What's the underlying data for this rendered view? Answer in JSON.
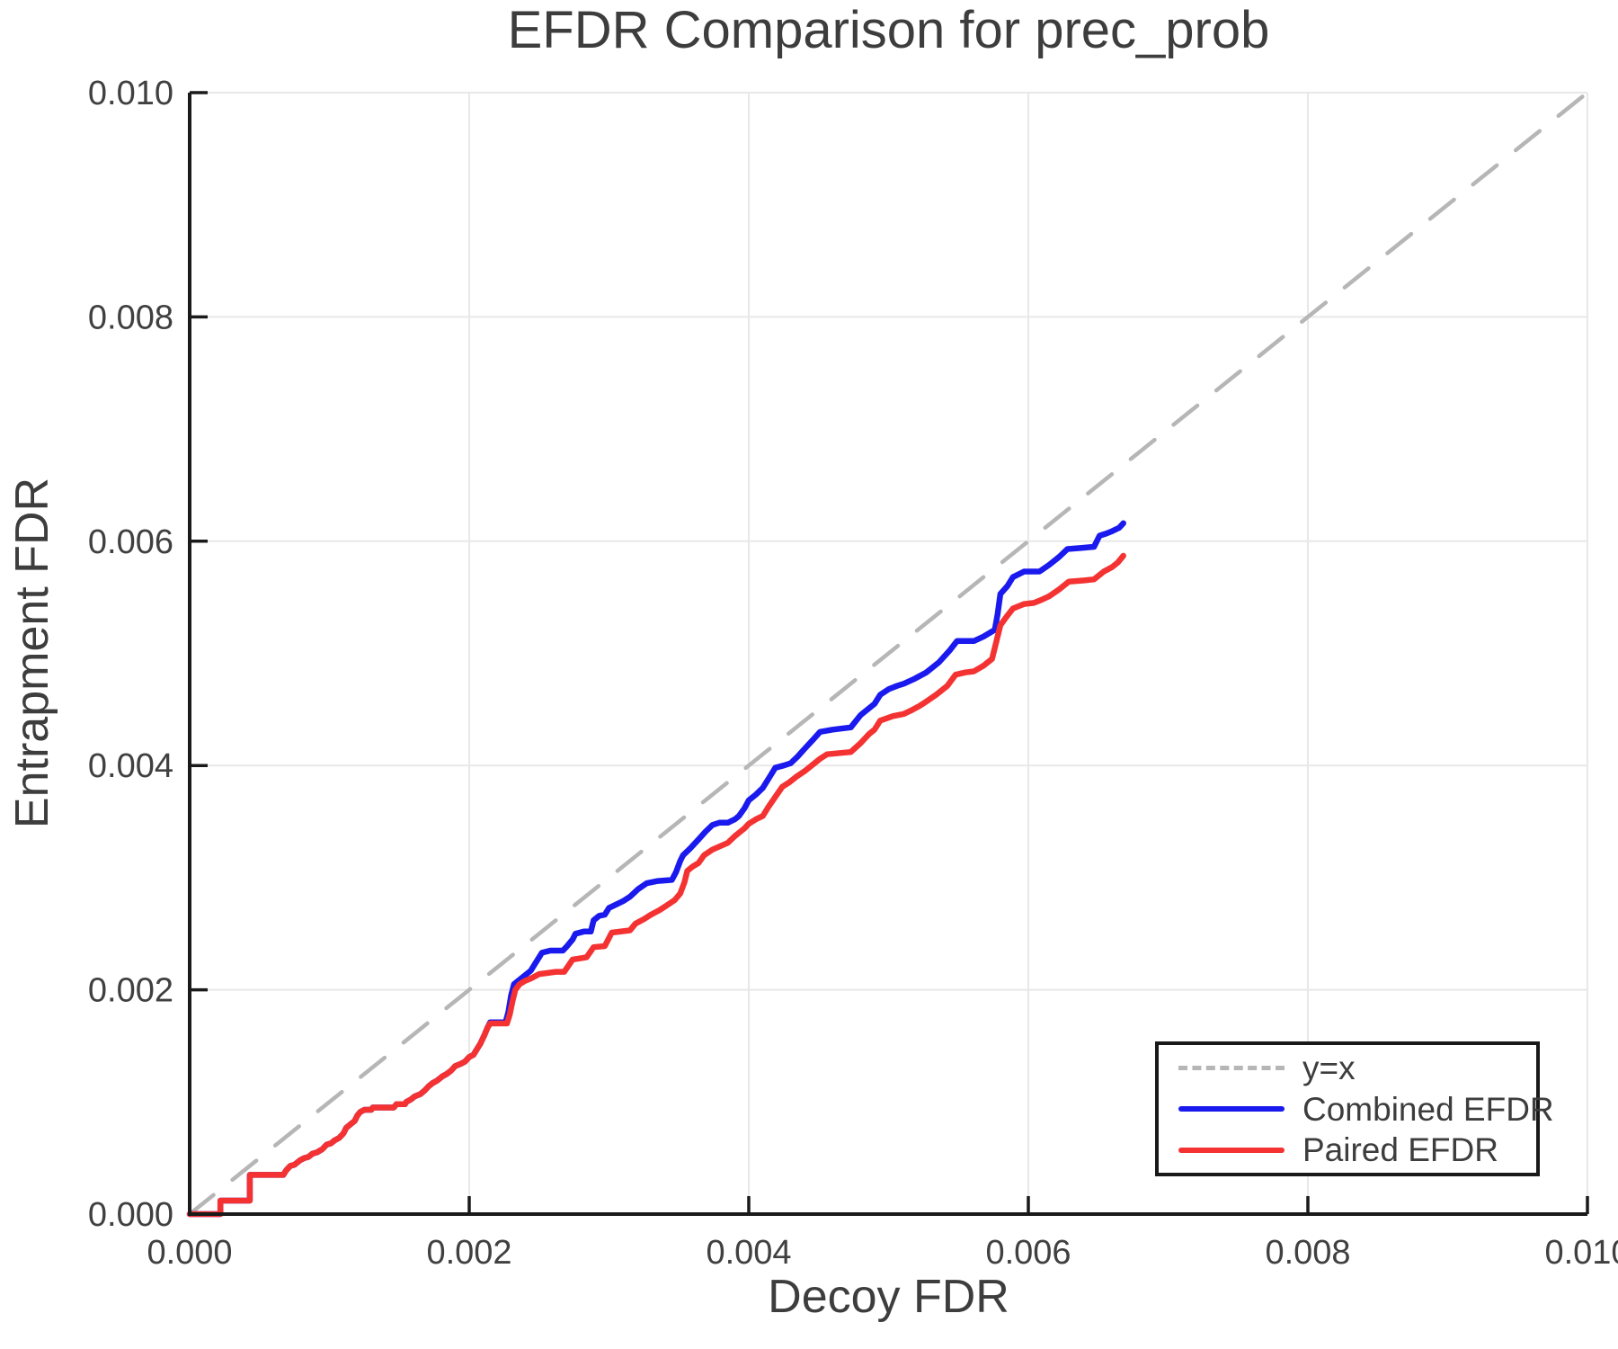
{
  "chart_data": {
    "type": "line",
    "title": "EFDR Comparison for prec_prob",
    "xlabel": "Decoy FDR",
    "ylabel": "Entrapment FDR",
    "xlim": [
      0.0,
      0.01
    ],
    "ylim": [
      0.0,
      0.01
    ],
    "xticks": [
      0.0,
      0.002,
      0.004,
      0.006,
      0.008,
      0.01
    ],
    "yticks": [
      0.0,
      0.002,
      0.004,
      0.006,
      0.008,
      0.01
    ],
    "xtick_labels": [
      "0.000",
      "0.002",
      "0.004",
      "0.006",
      "0.008",
      "0.010"
    ],
    "ytick_labels": [
      "0.000",
      "0.002",
      "0.004",
      "0.006",
      "0.008",
      "0.010"
    ],
    "grid": true,
    "grid_color": "#e8e8e8",
    "spine_color": "#1a1a1a",
    "text_color": "#3d3d3d",
    "legend_position": "lower right",
    "series": [
      {
        "name": "y=x",
        "style": "dashed",
        "color": "#b6b6b6",
        "width": 4.5,
        "points": [
          [
            0.0,
            0.0
          ],
          [
            0.01,
            0.01
          ]
        ]
      },
      {
        "name": "Combined EFDR",
        "style": "solid",
        "color": "#1a1aee",
        "width": 6.5,
        "points": [
          [
            0.0,
            0.0
          ],
          [
            0.00022,
            0.0
          ],
          [
            0.00022,
            0.00012
          ],
          [
            0.00043,
            0.00012
          ],
          [
            0.00043,
            0.00035
          ],
          [
            0.00067,
            0.00035
          ],
          [
            0.00069,
            0.00039
          ],
          [
            0.00072,
            0.00043
          ],
          [
            0.00075,
            0.00044
          ],
          [
            0.00079,
            0.00048
          ],
          [
            0.00082,
            0.0005
          ],
          [
            0.00085,
            0.00051
          ],
          [
            0.00088,
            0.00054
          ],
          [
            0.00091,
            0.00055
          ],
          [
            0.00095,
            0.00058
          ],
          [
            0.00098,
            0.00062
          ],
          [
            0.00101,
            0.00063
          ],
          [
            0.00104,
            0.00066
          ],
          [
            0.00107,
            0.00068
          ],
          [
            0.0011,
            0.00072
          ],
          [
            0.00112,
            0.00077
          ],
          [
            0.00115,
            0.0008
          ],
          [
            0.00118,
            0.00083
          ],
          [
            0.0012,
            0.00088
          ],
          [
            0.00122,
            0.00091
          ],
          [
            0.00125,
            0.00093
          ],
          [
            0.0013,
            0.00093
          ],
          [
            0.00131,
            0.00095
          ],
          [
            0.00146,
            0.00095
          ],
          [
            0.00148,
            0.00098
          ],
          [
            0.00154,
            0.00098
          ],
          [
            0.00155,
            0.001
          ],
          [
            0.00158,
            0.00102
          ],
          [
            0.00161,
            0.00105
          ],
          [
            0.00165,
            0.00107
          ],
          [
            0.00168,
            0.0011
          ],
          [
            0.00171,
            0.00114
          ],
          [
            0.00174,
            0.00117
          ],
          [
            0.00177,
            0.00119
          ],
          [
            0.00181,
            0.00123
          ],
          [
            0.00184,
            0.00125
          ],
          [
            0.00187,
            0.00128
          ],
          [
            0.0019,
            0.00132
          ],
          [
            0.00194,
            0.00134
          ],
          [
            0.00197,
            0.00136
          ],
          [
            0.002,
            0.0014
          ],
          [
            0.00203,
            0.00142
          ],
          [
            0.00206,
            0.00148
          ],
          [
            0.00208,
            0.00152
          ],
          [
            0.00211,
            0.0016
          ],
          [
            0.00213,
            0.00166
          ],
          [
            0.00215,
            0.00171
          ],
          [
            0.00226,
            0.00171
          ],
          [
            0.00228,
            0.0018
          ],
          [
            0.0023,
            0.00195
          ],
          [
            0.00232,
            0.00205
          ],
          [
            0.00235,
            0.00208
          ],
          [
            0.0024,
            0.00213
          ],
          [
            0.00244,
            0.00217
          ],
          [
            0.00248,
            0.00225
          ],
          [
            0.00252,
            0.00233
          ],
          [
            0.00258,
            0.00235
          ],
          [
            0.00267,
            0.00235
          ],
          [
            0.0027,
            0.00239
          ],
          [
            0.00274,
            0.00245
          ],
          [
            0.00276,
            0.0025
          ],
          [
            0.00282,
            0.00252
          ],
          [
            0.00287,
            0.00252
          ],
          [
            0.00289,
            0.00262
          ],
          [
            0.00293,
            0.00266
          ],
          [
            0.00297,
            0.00267
          ],
          [
            0.003,
            0.00273
          ],
          [
            0.00305,
            0.00276
          ],
          [
            0.0031,
            0.00279
          ],
          [
            0.00315,
            0.00283
          ],
          [
            0.00321,
            0.0029
          ],
          [
            0.00327,
            0.00295
          ],
          [
            0.00335,
            0.00297
          ],
          [
            0.00345,
            0.00298
          ],
          [
            0.00348,
            0.00305
          ],
          [
            0.00351,
            0.00315
          ],
          [
            0.00353,
            0.0032
          ],
          [
            0.00358,
            0.00326
          ],
          [
            0.00364,
            0.00334
          ],
          [
            0.00369,
            0.00341
          ],
          [
            0.00374,
            0.00347
          ],
          [
            0.00379,
            0.00349
          ],
          [
            0.00385,
            0.00349
          ],
          [
            0.0039,
            0.00352
          ],
          [
            0.00393,
            0.00355
          ],
          [
            0.00397,
            0.00362
          ],
          [
            0.004,
            0.00369
          ],
          [
            0.00405,
            0.00374
          ],
          [
            0.0041,
            0.0038
          ],
          [
            0.00414,
            0.00388
          ],
          [
            0.00419,
            0.00398
          ],
          [
            0.00425,
            0.004
          ],
          [
            0.0043,
            0.00402
          ],
          [
            0.00435,
            0.00408
          ],
          [
            0.0044,
            0.00415
          ],
          [
            0.00446,
            0.00423
          ],
          [
            0.00451,
            0.0043
          ],
          [
            0.0046,
            0.00432
          ],
          [
            0.00473,
            0.00434
          ],
          [
            0.0048,
            0.00445
          ],
          [
            0.00486,
            0.00451
          ],
          [
            0.0049,
            0.00455
          ],
          [
            0.00494,
            0.00463
          ],
          [
            0.005,
            0.00468
          ],
          [
            0.00506,
            0.00471
          ],
          [
            0.00511,
            0.00473
          ],
          [
            0.00518,
            0.00477
          ],
          [
            0.00527,
            0.00483
          ],
          [
            0.00536,
            0.00492
          ],
          [
            0.00544,
            0.00503
          ],
          [
            0.00549,
            0.00511
          ],
          [
            0.00561,
            0.00511
          ],
          [
            0.00568,
            0.00515
          ],
          [
            0.00576,
            0.00521
          ],
          [
            0.00578,
            0.00535
          ],
          [
            0.0058,
            0.00553
          ],
          [
            0.00585,
            0.0056
          ],
          [
            0.00589,
            0.00568
          ],
          [
            0.00597,
            0.00573
          ],
          [
            0.00608,
            0.00573
          ],
          [
            0.00615,
            0.00579
          ],
          [
            0.00622,
            0.00586
          ],
          [
            0.00628,
            0.00593
          ],
          [
            0.00638,
            0.00594
          ],
          [
            0.00647,
            0.00595
          ],
          [
            0.00651,
            0.00605
          ],
          [
            0.00656,
            0.00607
          ],
          [
            0.0066,
            0.00609
          ],
          [
            0.00665,
            0.00612
          ],
          [
            0.00668,
            0.00616
          ]
        ]
      },
      {
        "name": "Paired EFDR",
        "style": "solid",
        "color": "#f43232",
        "width": 6.5,
        "points": [
          [
            0.0,
            0.0
          ],
          [
            0.00022,
            0.0
          ],
          [
            0.00022,
            0.00012
          ],
          [
            0.00043,
            0.00012
          ],
          [
            0.00043,
            0.00035
          ],
          [
            0.00067,
            0.00035
          ],
          [
            0.00069,
            0.00039
          ],
          [
            0.00072,
            0.00043
          ],
          [
            0.00075,
            0.00044
          ],
          [
            0.00079,
            0.00048
          ],
          [
            0.00082,
            0.0005
          ],
          [
            0.00085,
            0.00051
          ],
          [
            0.00088,
            0.00054
          ],
          [
            0.00091,
            0.00055
          ],
          [
            0.00095,
            0.00058
          ],
          [
            0.00098,
            0.00062
          ],
          [
            0.00101,
            0.00063
          ],
          [
            0.00104,
            0.00066
          ],
          [
            0.00107,
            0.00068
          ],
          [
            0.0011,
            0.00072
          ],
          [
            0.00112,
            0.00077
          ],
          [
            0.00115,
            0.0008
          ],
          [
            0.00118,
            0.00083
          ],
          [
            0.0012,
            0.00088
          ],
          [
            0.00122,
            0.00091
          ],
          [
            0.00125,
            0.00093
          ],
          [
            0.0013,
            0.00093
          ],
          [
            0.00131,
            0.00095
          ],
          [
            0.00146,
            0.00095
          ],
          [
            0.00148,
            0.00098
          ],
          [
            0.00154,
            0.00098
          ],
          [
            0.00155,
            0.001
          ],
          [
            0.00158,
            0.00102
          ],
          [
            0.00161,
            0.00105
          ],
          [
            0.00165,
            0.00107
          ],
          [
            0.00168,
            0.0011
          ],
          [
            0.00171,
            0.00114
          ],
          [
            0.00174,
            0.00117
          ],
          [
            0.00177,
            0.00119
          ],
          [
            0.00181,
            0.00123
          ],
          [
            0.00184,
            0.00125
          ],
          [
            0.00187,
            0.00128
          ],
          [
            0.0019,
            0.00132
          ],
          [
            0.00194,
            0.00134
          ],
          [
            0.00197,
            0.00136
          ],
          [
            0.002,
            0.0014
          ],
          [
            0.00203,
            0.00142
          ],
          [
            0.00206,
            0.00148
          ],
          [
            0.00208,
            0.00152
          ],
          [
            0.00211,
            0.0016
          ],
          [
            0.00213,
            0.00166
          ],
          [
            0.00215,
            0.0017
          ],
          [
            0.00227,
            0.0017
          ],
          [
            0.00229,
            0.00178
          ],
          [
            0.00231,
            0.0019
          ],
          [
            0.00233,
            0.002
          ],
          [
            0.00236,
            0.00205
          ],
          [
            0.0024,
            0.00208
          ],
          [
            0.00244,
            0.0021
          ],
          [
            0.0025,
            0.00214
          ],
          [
            0.00256,
            0.00215
          ],
          [
            0.00262,
            0.00216
          ],
          [
            0.00268,
            0.00216
          ],
          [
            0.00274,
            0.00227
          ],
          [
            0.00284,
            0.00229
          ],
          [
            0.00289,
            0.00238
          ],
          [
            0.00297,
            0.00239
          ],
          [
            0.00302,
            0.00251
          ],
          [
            0.00315,
            0.00253
          ],
          [
            0.00319,
            0.00259
          ],
          [
            0.00325,
            0.00263
          ],
          [
            0.0033,
            0.00267
          ],
          [
            0.00336,
            0.00271
          ],
          [
            0.00341,
            0.00275
          ],
          [
            0.00347,
            0.0028
          ],
          [
            0.00351,
            0.00286
          ],
          [
            0.00354,
            0.00296
          ],
          [
            0.00356,
            0.00306
          ],
          [
            0.0036,
            0.0031
          ],
          [
            0.00364,
            0.00313
          ],
          [
            0.00368,
            0.0032
          ],
          [
            0.00374,
            0.00325
          ],
          [
            0.00385,
            0.00331
          ],
          [
            0.0039,
            0.00337
          ],
          [
            0.00393,
            0.0034
          ],
          [
            0.00397,
            0.00344
          ],
          [
            0.004,
            0.00348
          ],
          [
            0.00405,
            0.00352
          ],
          [
            0.0041,
            0.00355
          ],
          [
            0.00414,
            0.00363
          ],
          [
            0.00419,
            0.00372
          ],
          [
            0.00424,
            0.00381
          ],
          [
            0.00429,
            0.00385
          ],
          [
            0.00434,
            0.0039
          ],
          [
            0.0044,
            0.00395
          ],
          [
            0.00445,
            0.004
          ],
          [
            0.00451,
            0.00406
          ],
          [
            0.00456,
            0.0041
          ],
          [
            0.00473,
            0.00412
          ],
          [
            0.0048,
            0.0042
          ],
          [
            0.00486,
            0.00428
          ],
          [
            0.0049,
            0.00432
          ],
          [
            0.00494,
            0.0044
          ],
          [
            0.00503,
            0.00444
          ],
          [
            0.00511,
            0.00446
          ],
          [
            0.00516,
            0.00449
          ],
          [
            0.00522,
            0.00453
          ],
          [
            0.00527,
            0.00457
          ],
          [
            0.00534,
            0.00463
          ],
          [
            0.00542,
            0.00471
          ],
          [
            0.00548,
            0.00481
          ],
          [
            0.00555,
            0.00483
          ],
          [
            0.00561,
            0.00484
          ],
          [
            0.00568,
            0.00489
          ],
          [
            0.00574,
            0.00495
          ],
          [
            0.00576,
            0.00505
          ],
          [
            0.00578,
            0.00515
          ],
          [
            0.0058,
            0.00525
          ],
          [
            0.00584,
            0.00532
          ],
          [
            0.00589,
            0.0054
          ],
          [
            0.00597,
            0.00544
          ],
          [
            0.00604,
            0.00545
          ],
          [
            0.0061,
            0.00548
          ],
          [
            0.00615,
            0.00551
          ],
          [
            0.00622,
            0.00557
          ],
          [
            0.00629,
            0.00564
          ],
          [
            0.0064,
            0.00565
          ],
          [
            0.00647,
            0.00566
          ],
          [
            0.00654,
            0.00573
          ],
          [
            0.0066,
            0.00577
          ],
          [
            0.00664,
            0.00581
          ],
          [
            0.00668,
            0.00587
          ]
        ]
      }
    ]
  },
  "legend": {
    "entries": [
      "y=x",
      "Combined EFDR",
      "Paired EFDR"
    ]
  }
}
